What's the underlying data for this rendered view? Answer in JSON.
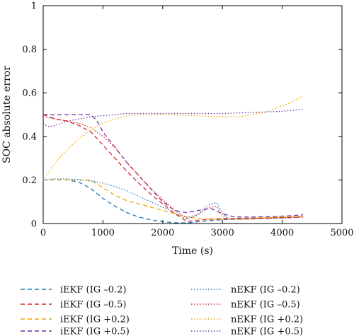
{
  "chart_data": {
    "type": "line",
    "xlabel": "Time (s)",
    "ylabel": "SOC absolute error",
    "xlim": [
      0,
      5000
    ],
    "ylim": [
      0,
      1
    ],
    "xticks": [
      0,
      1000,
      2000,
      3000,
      4000,
      5000
    ],
    "yticks": [
      0,
      0.2,
      0.4,
      0.6,
      0.8,
      1
    ],
    "xtick_labels": [
      "0",
      "1000",
      "2000",
      "3000",
      "4000",
      "5000"
    ],
    "ytick_labels": [
      "0",
      "0.2",
      "0.4",
      "0.6",
      "0.8",
      "1"
    ],
    "grid": false,
    "legend_placement": "bottom",
    "series": [
      {
        "name": "iEKF (IG –0.2)",
        "color": "#1f77b4",
        "dash": "dashed",
        "x": [
          0,
          200,
          400,
          600,
          800,
          1000,
          1200,
          1400,
          1600,
          1800,
          2000,
          2200,
          2400,
          2600,
          2800,
          3000,
          3200,
          3500,
          3800,
          4100,
          4350
        ],
        "y": [
          0.2,
          0.2,
          0.2,
          0.19,
          0.16,
          0.115,
          0.08,
          0.05,
          0.03,
          0.017,
          0.008,
          0.004,
          0.003,
          0.008,
          0.014,
          0.018,
          0.02,
          0.022,
          0.024,
          0.027,
          0.03
        ]
      },
      {
        "name": "iEKF (IG –0.5)",
        "color": "#d62728",
        "dash": "dashed",
        "x": [
          0,
          200,
          400,
          600,
          800,
          1000,
          1200,
          1400,
          1600,
          1800,
          2000,
          2200,
          2400,
          2600,
          2800,
          3000,
          3200,
          3500,
          3800,
          4100,
          4350
        ],
        "y": [
          0.5,
          0.48,
          0.47,
          0.45,
          0.42,
          0.36,
          0.3,
          0.24,
          0.185,
          0.135,
          0.09,
          0.045,
          0.01,
          0.015,
          0.02,
          0.022,
          0.023,
          0.024,
          0.026,
          0.028,
          0.03
        ]
      },
      {
        "name": "iEKF (IG +0.2)",
        "color": "#f0a30a",
        "dash": "dashed",
        "x": [
          0,
          200,
          400,
          600,
          800,
          1000,
          1200,
          1400,
          1600,
          1800,
          2000,
          2200,
          2400,
          2600,
          2800,
          3000,
          3200,
          3500,
          3800,
          4100,
          4350
        ],
        "y": [
          0.2,
          0.2,
          0.2,
          0.2,
          0.2,
          0.165,
          0.13,
          0.105,
          0.09,
          0.075,
          0.06,
          0.045,
          0.03,
          0.022,
          0.02,
          0.02,
          0.022,
          0.025,
          0.027,
          0.03,
          0.033
        ]
      },
      {
        "name": "iEKF (IG +0.5)",
        "color": "#7030a0",
        "dash": "dashed",
        "x": [
          0,
          200,
          400,
          600,
          800,
          900,
          1000,
          1200,
          1400,
          1600,
          1800,
          2000,
          2200,
          2400,
          2600,
          2800,
          3000,
          3200,
          3500,
          3800,
          4100,
          4350
        ],
        "y": [
          0.5,
          0.5,
          0.5,
          0.5,
          0.5,
          0.47,
          0.42,
          0.35,
          0.28,
          0.22,
          0.16,
          0.1,
          0.06,
          0.05,
          0.06,
          0.07,
          0.045,
          0.03,
          0.03,
          0.032,
          0.035,
          0.04
        ]
      },
      {
        "name": "nEKF (IG –0.2)",
        "color": "#1f77b4",
        "dash": "dotted",
        "x": [
          0,
          200,
          400,
          600,
          800,
          1000,
          1200,
          1400,
          1600,
          1800,
          2000,
          2200,
          2400,
          2600,
          2700,
          2800,
          2900,
          3000,
          3100,
          3300,
          3600,
          3900,
          4200,
          4350
        ],
        "y": [
          0.2,
          0.205,
          0.205,
          0.2,
          0.195,
          0.185,
          0.17,
          0.15,
          0.125,
          0.1,
          0.075,
          0.05,
          0.02,
          0.04,
          0.07,
          0.09,
          0.095,
          0.05,
          0.02,
          0.02,
          0.022,
          0.025,
          0.028,
          0.03
        ]
      },
      {
        "name": "nEKF (IG –0.5)",
        "color": "#d62728",
        "dash": "dotted",
        "x": [
          0,
          200,
          400,
          600,
          800,
          1000,
          1200,
          1400,
          1600,
          1800,
          2000,
          2200,
          2400,
          2600,
          2800,
          2900,
          3000,
          3100,
          3300,
          3600,
          3900,
          4200,
          4350
        ],
        "y": [
          0.49,
          0.48,
          0.47,
          0.46,
          0.44,
          0.4,
          0.35,
          0.28,
          0.22,
          0.16,
          0.11,
          0.06,
          0.025,
          0.045,
          0.075,
          0.08,
          0.035,
          0.02,
          0.02,
          0.022,
          0.025,
          0.028,
          0.03
        ]
      },
      {
        "name": "nEKF (IG +0.2)",
        "color": "#f0a30a",
        "dash": "dotted",
        "x": [
          0,
          100,
          200,
          400,
          600,
          800,
          1000,
          1200,
          1400,
          1600,
          1800,
          2000,
          2500,
          3000,
          3300,
          3500,
          3700,
          3900,
          4100,
          4350
        ],
        "y": [
          0.2,
          0.24,
          0.28,
          0.34,
          0.39,
          0.43,
          0.46,
          0.48,
          0.495,
          0.5,
          0.5,
          0.5,
          0.495,
          0.49,
          0.49,
          0.5,
          0.51,
          0.53,
          0.55,
          0.585
        ]
      },
      {
        "name": "nEKF (IG +0.5)",
        "color": "#7030a0",
        "dash": "dotted",
        "x": [
          0,
          50,
          100,
          200,
          400,
          600,
          800,
          1000,
          1200,
          1400,
          1600,
          2000,
          2500,
          3000,
          3500,
          4000,
          4350
        ],
        "y": [
          0.46,
          0.45,
          0.445,
          0.45,
          0.47,
          0.48,
          0.49,
          0.495,
          0.5,
          0.505,
          0.505,
          0.505,
          0.505,
          0.505,
          0.51,
          0.515,
          0.525
        ]
      }
    ]
  }
}
